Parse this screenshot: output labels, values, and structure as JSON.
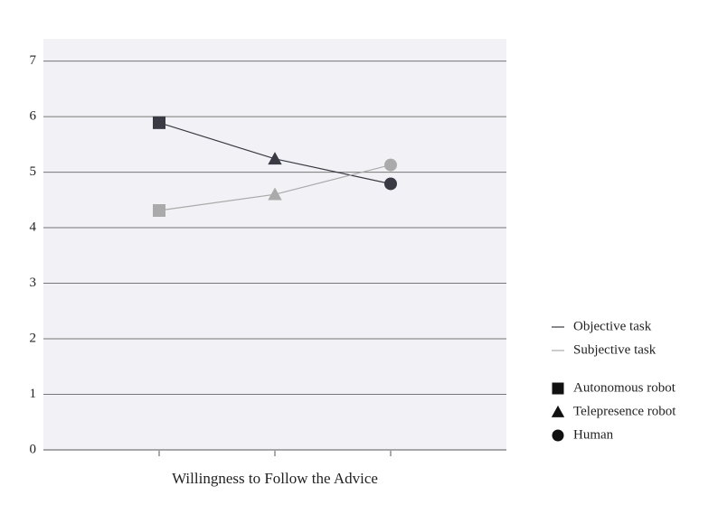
{
  "chart_data": {
    "type": "line",
    "x_label": "Willingness to Follow the Advice",
    "categories": [
      null,
      null,
      null
    ],
    "series": [
      {
        "name": "Objective task",
        "color": "#3a3a44",
        "values": [
          5.89,
          5.24,
          4.79
        ]
      },
      {
        "name": "Subjective task",
        "color": "#aaaaaa",
        "values": [
          4.31,
          4.6,
          5.13
        ]
      }
    ],
    "markers": [
      {
        "label": "Autonomous robot",
        "shape": "square"
      },
      {
        "label": "Telepresence robot",
        "shape": "triangle"
      },
      {
        "label": "Human",
        "shape": "circle"
      }
    ],
    "ylim": [
      0,
      7.4
    ],
    "yticks": [
      0,
      1,
      2,
      3,
      4,
      5,
      6,
      7
    ],
    "grid": true
  }
}
